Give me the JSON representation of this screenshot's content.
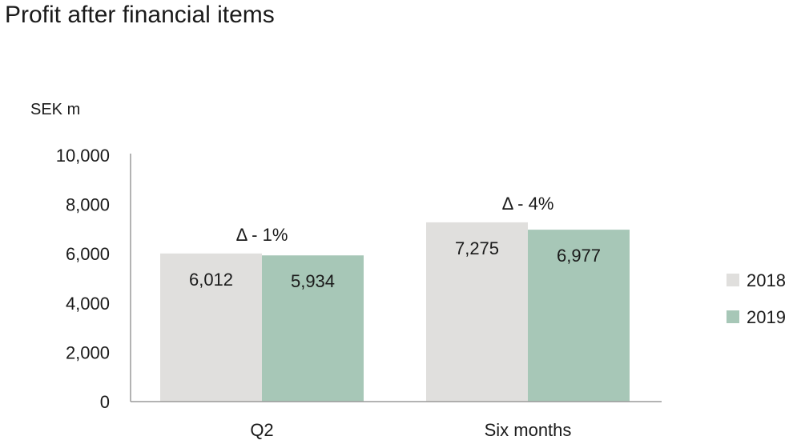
{
  "chart_data": {
    "type": "bar",
    "title": "Profit after financial items",
    "ylabel": "SEK m",
    "xlabel": "",
    "categories": [
      "Q2",
      "Six months"
    ],
    "series": [
      {
        "name": "2018",
        "values": [
          6012,
          7275
        ],
        "labels": [
          "6,012",
          "7,275"
        ],
        "color": "#e0dfdd"
      },
      {
        "name": "2019",
        "values": [
          5934,
          6977
        ],
        "labels": [
          "5,934",
          "6,977"
        ],
        "color": "#a7c7b7"
      }
    ],
    "ylim": [
      0,
      10000
    ],
    "yticks": [
      0,
      2000,
      4000,
      6000,
      8000,
      10000
    ],
    "ytick_labels": [
      "0",
      "2,000",
      "4,000",
      "6,000",
      "8,000",
      "10,000"
    ],
    "annotations": [
      "Δ  - 1%",
      "Δ  - 4%"
    ],
    "legend_position": "right",
    "grid": false
  }
}
